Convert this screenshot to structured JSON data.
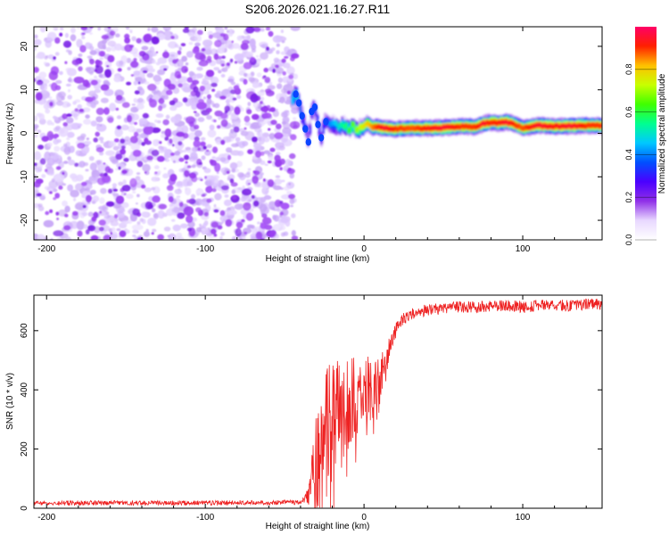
{
  "figure_title": "S206.2026.021.16.27.R11",
  "colors": {
    "snr_line": "#ee2222",
    "noise_purple": "#8a2be2",
    "frame": "#000000"
  },
  "chart_data": [
    {
      "type": "heatmap",
      "title": "S206.2026.021.16.27.R11",
      "xlabel": "Height of straight line (km)",
      "ylabel": "Frequency (Hz)",
      "xlim": [
        -208,
        150
      ],
      "ylim": [
        -24.5,
        24.5
      ],
      "x_ticks": [
        -200,
        -100,
        0,
        100
      ],
      "x_tick_labels": [
        "-200",
        "-100",
        "0",
        "100"
      ],
      "y_ticks": [
        -20,
        -10,
        0,
        10,
        20
      ],
      "y_tick_labels": [
        "-20",
        "-10",
        "0",
        "10",
        "20"
      ],
      "noise_region_x": [
        -208,
        -43
      ],
      "signal_track": {
        "x": [
          -45,
          -43,
          -41,
          -39,
          -37,
          -35,
          -33,
          -31,
          -29,
          -27,
          -25,
          -22,
          -19,
          -16,
          -13,
          -10,
          -7,
          -4,
          -1,
          2,
          5,
          8,
          12,
          20,
          30,
          40,
          50,
          60,
          70,
          75,
          80,
          85,
          90,
          95,
          100,
          105,
          110,
          120,
          130,
          140,
          150
        ],
        "freq_hz": [
          8,
          9,
          7,
          4,
          1,
          -2,
          5,
          6,
          2,
          -1,
          3,
          2,
          2,
          1.5,
          2,
          1,
          1.8,
          0.8,
          1.5,
          2.3,
          1.4,
          1.5,
          1.2,
          1.0,
          1.2,
          1.2,
          1.3,
          1.6,
          1.5,
          2.2,
          2.5,
          2.4,
          2.6,
          2.0,
          1.2,
          1.5,
          1.8,
          1.6,
          1.7,
          1.8,
          1.8
        ],
        "amplitude": [
          0.45,
          0.5,
          0.4,
          0.35,
          0.3,
          0.25,
          0.35,
          0.35,
          0.3,
          0.25,
          0.35,
          0.4,
          0.45,
          0.5,
          0.55,
          0.6,
          0.65,
          0.7,
          0.75,
          0.8,
          0.85,
          0.9,
          0.95,
          0.9,
          0.88,
          0.92,
          0.95,
          0.9,
          0.9,
          0.95,
          0.9,
          0.92,
          0.95,
          0.9,
          0.88,
          0.92,
          0.95,
          0.92,
          0.95,
          0.9,
          0.9
        ]
      },
      "colorbar": {
        "label": "Normalized spectral amplitude",
        "range": [
          0.0,
          1.0
        ],
        "ticks": [
          0.0,
          0.2,
          0.4,
          0.6,
          0.8
        ],
        "tick_labels": [
          "0.0",
          "0.2",
          "0.4",
          "0.6",
          "0.8"
        ],
        "colormap": [
          "#ffffff",
          "#e8d8ff",
          "#9030e8",
          "#4b00ff",
          "#0050ff",
          "#00c8ff",
          "#00ff90",
          "#40ff00",
          "#c8ff00",
          "#ffc000",
          "#ff2000",
          "#ff0066"
        ]
      }
    },
    {
      "type": "line",
      "xlabel": "Height of straight line (km)",
      "ylabel": "SNR (10 * v/v)",
      "xlim": [
        -208,
        150
      ],
      "ylim": [
        0,
        720
      ],
      "x_ticks": [
        -200,
        -100,
        0,
        100
      ],
      "x_tick_labels": [
        "-200",
        "-100",
        "0",
        "100"
      ],
      "y_ticks": [
        0,
        200,
        400,
        600
      ],
      "y_tick_labels": [
        "0",
        "200",
        "400",
        "600"
      ],
      "series": [
        {
          "name": "SNR",
          "color": "#ee2222",
          "x": [
            -208,
            -150,
            -100,
            -60,
            -40,
            -35,
            -32,
            -30,
            -28,
            -26,
            -24,
            -22,
            -20,
            -18,
            -16,
            -14,
            -12,
            -10,
            -8,
            -6,
            -4,
            -2,
            0,
            2,
            4,
            6,
            8,
            10,
            12,
            14,
            16,
            18,
            20,
            22,
            25,
            30,
            35,
            40,
            50,
            60,
            70,
            80,
            90,
            100,
            110,
            120,
            130,
            140,
            150
          ],
          "values": [
            18,
            18,
            18,
            20,
            20,
            40,
            120,
            180,
            200,
            230,
            270,
            300,
            310,
            320,
            330,
            330,
            340,
            350,
            360,
            370,
            380,
            380,
            400,
            420,
            410,
            420,
            430,
            450,
            480,
            500,
            540,
            580,
            600,
            620,
            640,
            655,
            665,
            670,
            675,
            680,
            680,
            685,
            685,
            680,
            685,
            685,
            685,
            690,
            690
          ],
          "noise_amplitude": [
            8,
            8,
            8,
            8,
            8,
            30,
            120,
            180,
            200,
            200,
            220,
            220,
            200,
            180,
            180,
            170,
            160,
            150,
            150,
            140,
            130,
            120,
            110,
            100,
            100,
            100,
            90,
            90,
            60,
            50,
            40,
            30,
            25,
            22,
            20,
            20,
            20,
            20,
            20,
            20,
            20,
            20,
            20,
            20,
            20,
            20,
            20,
            20,
            20
          ]
        }
      ]
    }
  ]
}
